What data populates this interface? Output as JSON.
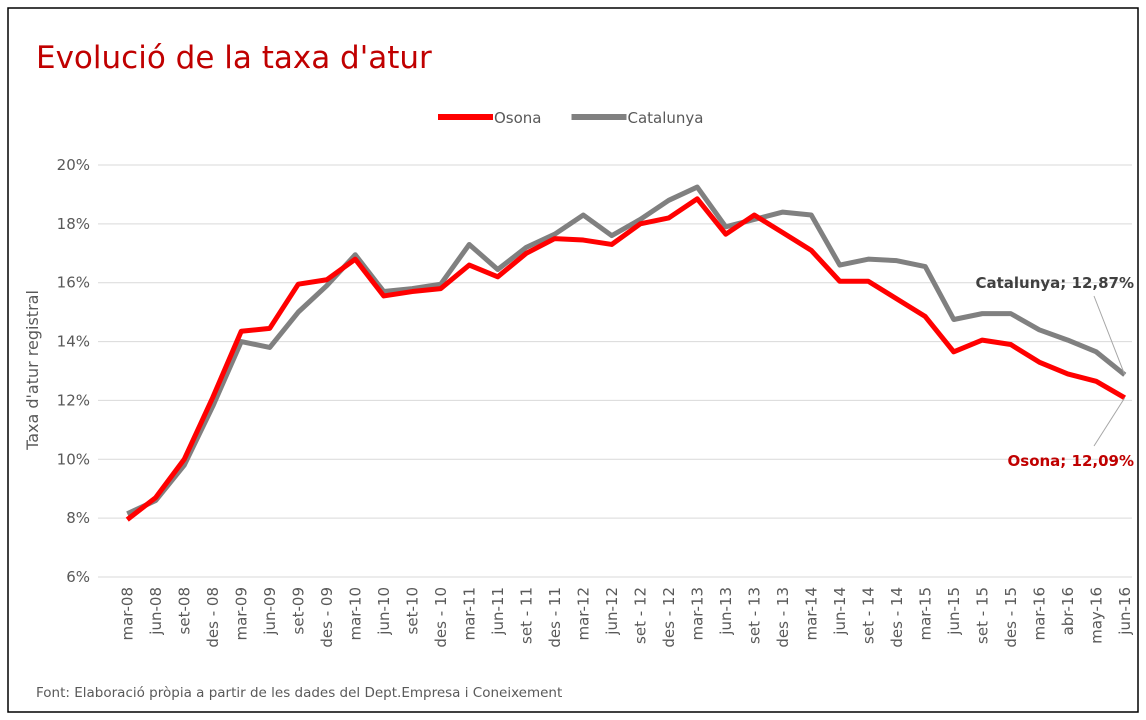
{
  "chart_data": {
    "type": "line",
    "title": "Evolució de la taxa d'atur",
    "y_label": "Taxa d'atur registral",
    "source": "Font: Elaboració pròpia a partir de les dades del Dept.Empresa i Coneixement",
    "categories": [
      "mar-08",
      "jun-08",
      "set-08",
      "des - 08",
      "mar-09",
      "jun-09",
      "set-09",
      "des - 09",
      "mar-10",
      "jun-10",
      "set-10",
      "des - 10",
      "mar-11",
      "jun-11",
      "set - 11",
      "des - 11",
      "mar-12",
      "jun-12",
      "set - 12",
      "des - 12",
      "mar-13",
      "jun-13",
      "set - 13",
      "des - 13",
      "mar-14",
      "jun-14",
      "set - 14",
      "des - 14",
      "mar-15",
      "jun-15",
      "set - 15",
      "des - 15",
      "mar-16",
      "abr-16",
      "may-16",
      "jun-16"
    ],
    "series": [
      {
        "name": "Osona",
        "color": "#ff0000",
        "values": [
          7.95,
          8.7,
          10.0,
          12.1,
          14.35,
          14.45,
          15.95,
          16.1,
          16.8,
          15.55,
          15.7,
          15.8,
          16.6,
          16.2,
          17.0,
          17.5,
          17.45,
          17.3,
          18.0,
          18.2,
          18.85,
          17.65,
          18.3,
          17.7,
          17.1,
          16.05,
          16.05,
          15.45,
          14.85,
          13.65,
          14.05,
          13.9,
          13.3,
          12.9,
          12.65,
          12.09
        ]
      },
      {
        "name": "Catalunya",
        "color": "#808080",
        "values": [
          8.15,
          8.6,
          9.8,
          11.8,
          14.0,
          13.8,
          15.0,
          15.9,
          16.95,
          15.7,
          15.8,
          15.95,
          17.3,
          16.45,
          17.2,
          17.65,
          18.3,
          17.6,
          18.15,
          18.8,
          19.25,
          17.9,
          18.15,
          18.4,
          18.3,
          16.6,
          16.8,
          16.75,
          16.55,
          14.75,
          14.95,
          14.95,
          14.4,
          14.05,
          13.65,
          12.87
        ]
      }
    ],
    "annotations": [
      {
        "text": "Catalunya; 12,87%",
        "color": "#404040"
      },
      {
        "text": "Osona; 12,09%",
        "color": "#c00000"
      }
    ],
    "ylim": [
      6,
      20
    ],
    "yticks": [
      {
        "value": 6,
        "label": "6%"
      },
      {
        "value": 8,
        "label": "8%"
      },
      {
        "value": 10,
        "label": "10%"
      },
      {
        "value": 12,
        "label": "12%"
      },
      {
        "value": 14,
        "label": "14%"
      },
      {
        "value": 16,
        "label": "16%"
      },
      {
        "value": 18,
        "label": "18%"
      },
      {
        "value": 20,
        "label": "20%"
      }
    ],
    "grid": true,
    "legend": "top"
  }
}
